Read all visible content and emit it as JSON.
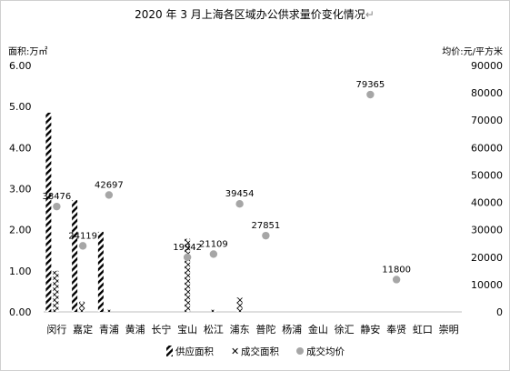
{
  "chart_data": {
    "type": "bar",
    "title": "2020 年 3 月上海各区域办公供求量价变化情况",
    "title_mark": "↵",
    "ylabel_left": "面积:万㎡",
    "ylabel_right": "均价:元/平方米",
    "ylim_left": [
      0,
      6
    ],
    "ylim_right": [
      0,
      90000
    ],
    "yticks_left": [
      "0.00",
      "1.00",
      "2.00",
      "3.00",
      "4.00",
      "5.00",
      "6.00"
    ],
    "yticks_right": [
      "0",
      "10000",
      "20000",
      "30000",
      "40000",
      "50000",
      "60000",
      "70000",
      "80000",
      "90000"
    ],
    "categories": [
      "闵行",
      "嘉定",
      "青浦",
      "黄浦",
      "长宁",
      "宝山",
      "松江",
      "浦东",
      "普陀",
      "杨浦",
      "金山",
      "徐汇",
      "静安",
      "奉贤",
      "虹口",
      "崇明"
    ],
    "series": [
      {
        "name": "供应面积",
        "axis": "left",
        "type": "bar",
        "values": [
          4.85,
          2.72,
          1.95,
          0,
          0,
          0,
          0,
          0,
          0,
          0,
          0,
          0,
          0,
          0,
          0,
          0
        ]
      },
      {
        "name": "成交面积",
        "axis": "left",
        "type": "bar",
        "values": [
          1.0,
          0.25,
          0.05,
          0,
          0,
          1.78,
          0.05,
          0.35,
          0,
          0,
          0,
          0,
          0,
          0,
          0,
          0
        ]
      },
      {
        "name": "成交均价",
        "axis": "right",
        "type": "scatter",
        "values": [
          38476,
          24119,
          42697,
          null,
          null,
          19942,
          21109,
          39454,
          27851,
          null,
          null,
          null,
          79365,
          11800,
          null,
          null
        ]
      }
    ],
    "data_labels": [
      "38476",
      "24119",
      "42697",
      "",
      "",
      "19942",
      "21109",
      "39454",
      "27851",
      "",
      "",
      "",
      "79365",
      "11800",
      "",
      ""
    ],
    "legend_position": "bottom",
    "grid": false
  }
}
